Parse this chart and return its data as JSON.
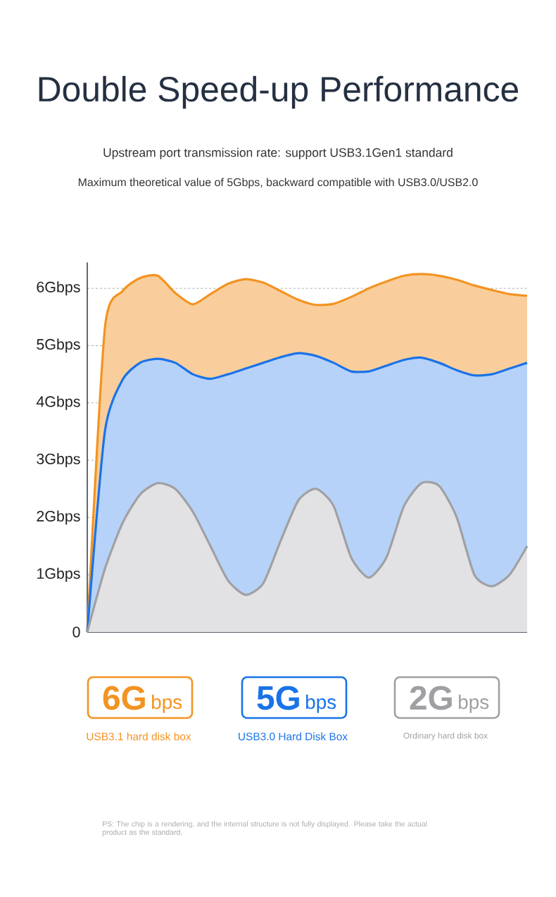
{
  "chart_data": {
    "type": "area",
    "title": "Double Speed-up Performance",
    "subtitle": "Upstream port transmission rate: support USB3.1Gen1 standard",
    "annotations": [
      "Maximum theoretical value of 5Gbps, backward compatible with USB3.0/USB2.0",
      "6G",
      "bps",
      "5G",
      "bps",
      "2G",
      "bps",
      "PS: The chip is a rendering, and the internal structure is not fully displayed. Please take the actual product as the standard."
    ],
    "categories": [
      null,
      null,
      null,
      null,
      null,
      null,
      null,
      null,
      null,
      null,
      null,
      null,
      null,
      null,
      null,
      null,
      null,
      null,
      null,
      null,
      null,
      null,
      null,
      null,
      null,
      null
    ],
    "series": [
      {
        "name": "USB3.1 hard disk box",
        "color": "#f39322",
        "values": [
          0,
          5.3,
          5.95,
          6.18,
          6.22,
          5.92,
          5.72,
          5.9,
          6.08,
          6.16,
          6.1,
          5.95,
          5.8,
          5.71,
          5.73,
          5.85,
          6.0,
          6.12,
          6.22,
          6.25,
          6.22,
          6.15,
          6.05,
          5.97,
          5.9,
          5.87
        ]
      },
      {
        "name": "USB3.0 Hard Disk Box",
        "color": "#1a73e8",
        "values": [
          0,
          3.5,
          4.4,
          4.7,
          4.77,
          4.7,
          4.5,
          4.42,
          4.5,
          4.6,
          4.7,
          4.8,
          4.87,
          4.82,
          4.7,
          4.55,
          4.55,
          4.65,
          4.75,
          4.79,
          4.7,
          4.57,
          4.48,
          4.5,
          4.6,
          4.7
        ]
      },
      {
        "name": "Ordinary hard disk box",
        "color": "#a0a0a4",
        "values": [
          0,
          1.1,
          1.9,
          2.4,
          2.6,
          2.5,
          2.1,
          1.5,
          0.9,
          0.65,
          0.85,
          1.6,
          2.3,
          2.5,
          2.2,
          1.3,
          0.95,
          1.3,
          2.2,
          2.6,
          2.55,
          2.0,
          1.0,
          0.8,
          1.0,
          1.5
        ]
      }
    ],
    "ylim": [
      0,
      6.45
    ],
    "yticks": [
      0,
      {
        "value": 1,
        "label": "1Gbps"
      },
      {
        "value": 2,
        "label": "2Gbps"
      },
      {
        "value": 3,
        "label": "3Gbps"
      },
      {
        "value": 4,
        "label": "4Gbps"
      },
      {
        "value": 5,
        "label": "5Gbps"
      },
      {
        "value": 6,
        "label": "6Gbps"
      }
    ],
    "grid": "y",
    "legend": "bottom"
  }
}
